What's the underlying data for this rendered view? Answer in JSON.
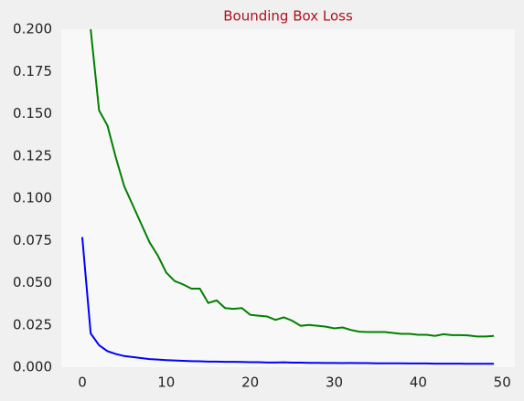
{
  "chart_data": {
    "type": "line",
    "title": "Bounding Box Loss",
    "x": [
      0,
      1,
      2,
      3,
      4,
      5,
      6,
      7,
      8,
      9,
      10,
      11,
      12,
      13,
      14,
      15,
      16,
      17,
      18,
      19,
      20,
      21,
      22,
      23,
      24,
      25,
      26,
      27,
      28,
      29,
      30,
      31,
      32,
      33,
      34,
      35,
      36,
      37,
      38,
      39,
      40,
      41,
      42,
      43,
      44,
      45,
      46,
      47,
      48,
      49
    ],
    "series": [
      {
        "color": "#0000ff",
        "values": [
          0.077,
          0.02,
          0.013,
          0.0095,
          0.0078,
          0.0066,
          0.006,
          0.0054,
          0.0048,
          0.0045,
          0.0042,
          0.004,
          0.0038,
          0.0036,
          0.0035,
          0.0033,
          0.0033,
          0.0032,
          0.0032,
          0.0031,
          0.003,
          0.003,
          0.0028,
          0.0028,
          0.0029,
          0.0027,
          0.0027,
          0.0026,
          0.0026,
          0.0025,
          0.0025,
          0.0024,
          0.0025,
          0.0024,
          0.0024,
          0.0023,
          0.0023,
          0.0023,
          0.0023,
          0.0022,
          0.0022,
          0.0022,
          0.0021,
          0.0021,
          0.0021,
          0.0021,
          0.002,
          0.002,
          0.002,
          0.002
        ]
      },
      {
        "color": "#008000",
        "values": [
          null,
          0.2,
          0.152,
          0.143,
          0.124,
          0.107,
          0.096,
          0.085,
          0.074,
          0.066,
          0.056,
          0.051,
          0.049,
          0.0465,
          0.0465,
          0.038,
          0.0395,
          0.035,
          0.0345,
          0.035,
          0.031,
          0.0305,
          0.03,
          0.028,
          0.0295,
          0.0275,
          0.0245,
          0.025,
          0.0245,
          0.024,
          0.023,
          0.0235,
          0.022,
          0.021,
          0.0208,
          0.0208,
          0.0208,
          0.0203,
          0.0197,
          0.0197,
          0.0192,
          0.0192,
          0.0185,
          0.0195,
          0.019,
          0.019,
          0.0188,
          0.0182,
          0.0182,
          0.0185
        ]
      }
    ],
    "xlim": [
      -2.5,
      51.5
    ],
    "ylim": [
      0,
      0.2
    ],
    "xticks": [
      0,
      10,
      20,
      30,
      40,
      50
    ],
    "yticks": [
      {
        "value": 0,
        "label": "0.000"
      },
      {
        "value": 0.025,
        "label": "0.025"
      },
      {
        "value": 0.05,
        "label": "0.050"
      },
      {
        "value": 0.075,
        "label": "0.075"
      },
      {
        "value": 0.1,
        "label": "0.100"
      },
      {
        "value": 0.125,
        "label": "0.125"
      },
      {
        "value": 0.15,
        "label": "0.150"
      },
      {
        "value": 0.175,
        "label": "0.175"
      },
      {
        "value": 0.2,
        "label": "0.200"
      }
    ],
    "grid": false
  }
}
